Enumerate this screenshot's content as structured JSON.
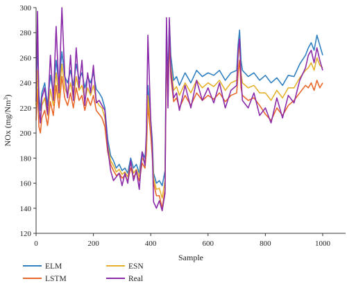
{
  "chart_data": {
    "type": "line",
    "xlabel": "Sample",
    "ylabel": "NOx (mg/Nm",
    "ylabel_superscript": "3",
    "ylabel_close": ")",
    "xlim": [
      0,
      1080
    ],
    "ylim": [
      120,
      300
    ],
    "xticks": [
      0,
      200,
      400,
      600,
      800,
      1000
    ],
    "yticks": [
      120,
      140,
      160,
      180,
      200,
      220,
      240,
      260,
      280,
      300
    ],
    "grid": false,
    "legend_placement": "bottom",
    "series": [
      {
        "name": "ELM",
        "color": "#2f7fc1",
        "x": [
          0,
          5,
          10,
          15,
          20,
          30,
          40,
          50,
          60,
          70,
          80,
          90,
          100,
          110,
          120,
          130,
          140,
          150,
          160,
          170,
          180,
          190,
          200,
          210,
          220,
          230,
          240,
          250,
          260,
          270,
          280,
          290,
          300,
          310,
          320,
          330,
          340,
          350,
          360,
          370,
          380,
          385,
          390,
          400,
          405,
          410,
          420,
          430,
          440,
          450,
          455,
          460,
          465,
          470,
          480,
          490,
          500,
          520,
          540,
          560,
          580,
          600,
          620,
          640,
          660,
          680,
          700,
          705,
          710,
          715,
          720,
          740,
          760,
          780,
          800,
          820,
          840,
          860,
          880,
          900,
          920,
          940,
          950,
          960,
          970,
          980,
          990,
          1000
        ],
        "y": [
          235,
          270,
          230,
          218,
          232,
          240,
          222,
          246,
          232,
          258,
          238,
          265,
          245,
          240,
          250,
          238,
          255,
          243,
          248,
          236,
          245,
          240,
          248,
          235,
          232,
          228,
          220,
          195,
          182,
          178,
          172,
          175,
          170,
          172,
          168,
          180,
          172,
          175,
          168,
          185,
          180,
          195,
          238,
          210,
          195,
          168,
          160,
          162,
          158,
          170,
          285,
          240,
          290,
          262,
          242,
          245,
          238,
          248,
          240,
          250,
          245,
          248,
          246,
          250,
          242,
          248,
          250,
          270,
          282,
          258,
          250,
          245,
          248,
          242,
          246,
          240,
          244,
          238,
          246,
          245,
          255,
          262,
          268,
          272,
          266,
          278,
          270,
          262
        ]
      },
      {
        "name": "LSTM",
        "color": "#e8672a",
        "x": [
          0,
          5,
          10,
          15,
          20,
          30,
          40,
          50,
          60,
          70,
          80,
          90,
          100,
          110,
          120,
          130,
          140,
          150,
          160,
          170,
          180,
          190,
          200,
          210,
          220,
          230,
          240,
          250,
          260,
          270,
          280,
          290,
          300,
          310,
          320,
          330,
          340,
          350,
          360,
          370,
          380,
          385,
          390,
          400,
          405,
          410,
          420,
          430,
          440,
          450,
          455,
          460,
          465,
          470,
          480,
          490,
          500,
          520,
          540,
          560,
          580,
          600,
          620,
          640,
          660,
          680,
          700,
          705,
          710,
          715,
          720,
          740,
          760,
          780,
          800,
          820,
          840,
          860,
          880,
          900,
          920,
          940,
          950,
          960,
          970,
          980,
          990,
          1000
        ],
        "y": [
          210,
          235,
          205,
          200,
          212,
          218,
          206,
          225,
          214,
          238,
          220,
          245,
          228,
          222,
          232,
          220,
          236,
          226,
          230,
          218,
          228,
          222,
          230,
          218,
          215,
          212,
          205,
          185,
          175,
          170,
          166,
          168,
          164,
          166,
          162,
          172,
          165,
          168,
          162,
          176,
          172,
          185,
          222,
          198,
          182,
          160,
          150,
          150,
          140,
          155,
          268,
          222,
          275,
          245,
          225,
          228,
          220,
          230,
          222,
          232,
          226,
          230,
          227,
          232,
          225,
          230,
          232,
          248,
          258,
          236,
          230,
          226,
          228,
          222,
          215,
          210,
          220,
          214,
          222,
          226,
          232,
          238,
          236,
          240,
          234,
          242,
          236,
          240
        ]
      },
      {
        "name": "ESN",
        "color": "#e5b12b",
        "x": [
          0,
          5,
          10,
          15,
          20,
          30,
          40,
          50,
          60,
          70,
          80,
          90,
          100,
          110,
          120,
          130,
          140,
          150,
          160,
          170,
          180,
          190,
          200,
          210,
          220,
          230,
          240,
          250,
          260,
          270,
          280,
          290,
          300,
          310,
          320,
          330,
          340,
          350,
          360,
          370,
          380,
          385,
          390,
          400,
          405,
          410,
          420,
          430,
          440,
          450,
          455,
          460,
          465,
          470,
          480,
          490,
          500,
          520,
          540,
          560,
          580,
          600,
          620,
          640,
          660,
          680,
          700,
          705,
          710,
          715,
          720,
          740,
          760,
          780,
          800,
          820,
          840,
          860,
          880,
          900,
          920,
          940,
          950,
          960,
          970,
          980,
          990,
          1000
        ],
        "y": [
          222,
          250,
          215,
          210,
          222,
          228,
          214,
          235,
          222,
          248,
          228,
          255,
          236,
          230,
          240,
          228,
          245,
          234,
          238,
          226,
          236,
          230,
          238,
          226,
          222,
          220,
          212,
          190,
          178,
          174,
          169,
          171,
          167,
          169,
          165,
          176,
          168,
          171,
          165,
          180,
          176,
          190,
          230,
          204,
          188,
          164,
          155,
          156,
          148,
          162,
          276,
          230,
          282,
          254,
          234,
          237,
          230,
          240,
          232,
          242,
          236,
          240,
          237,
          242,
          234,
          240,
          242,
          260,
          270,
          248,
          240,
          236,
          238,
          232,
          232,
          226,
          234,
          228,
          236,
          236,
          244,
          250,
          252,
          256,
          250,
          260,
          254,
          252
        ]
      },
      {
        "name": "Real",
        "color": "#8a2aa8",
        "x": [
          0,
          5,
          10,
          15,
          20,
          30,
          40,
          50,
          60,
          70,
          80,
          90,
          100,
          110,
          120,
          130,
          140,
          150,
          160,
          170,
          180,
          190,
          200,
          210,
          220,
          230,
          240,
          250,
          260,
          270,
          280,
          290,
          300,
          310,
          320,
          330,
          340,
          350,
          360,
          370,
          380,
          385,
          390,
          400,
          405,
          410,
          420,
          430,
          440,
          450,
          455,
          460,
          465,
          470,
          480,
          490,
          500,
          520,
          540,
          560,
          580,
          600,
          620,
          640,
          660,
          680,
          700,
          705,
          710,
          715,
          720,
          740,
          760,
          780,
          800,
          820,
          840,
          860,
          880,
          900,
          920,
          940,
          950,
          960,
          970,
          980,
          990,
          1000
        ],
        "y": [
          225,
          297,
          220,
          208,
          228,
          236,
          215,
          262,
          226,
          285,
          232,
          300,
          246,
          228,
          262,
          226,
          268,
          236,
          258,
          222,
          248,
          232,
          254,
          224,
          226,
          222,
          218,
          188,
          170,
          162,
          165,
          168,
          158,
          168,
          160,
          178,
          162,
          170,
          155,
          185,
          174,
          202,
          278,
          210,
          190,
          145,
          140,
          146,
          138,
          152,
          292,
          220,
          292,
          250,
          228,
          232,
          218,
          238,
          220,
          242,
          226,
          236,
          224,
          240,
          220,
          234,
          238,
          265,
          275,
          244,
          226,
          220,
          232,
          214,
          220,
          208,
          228,
          212,
          230,
          224,
          242,
          252,
          262,
          266,
          256,
          268,
          258,
          250
        ]
      }
    ]
  }
}
